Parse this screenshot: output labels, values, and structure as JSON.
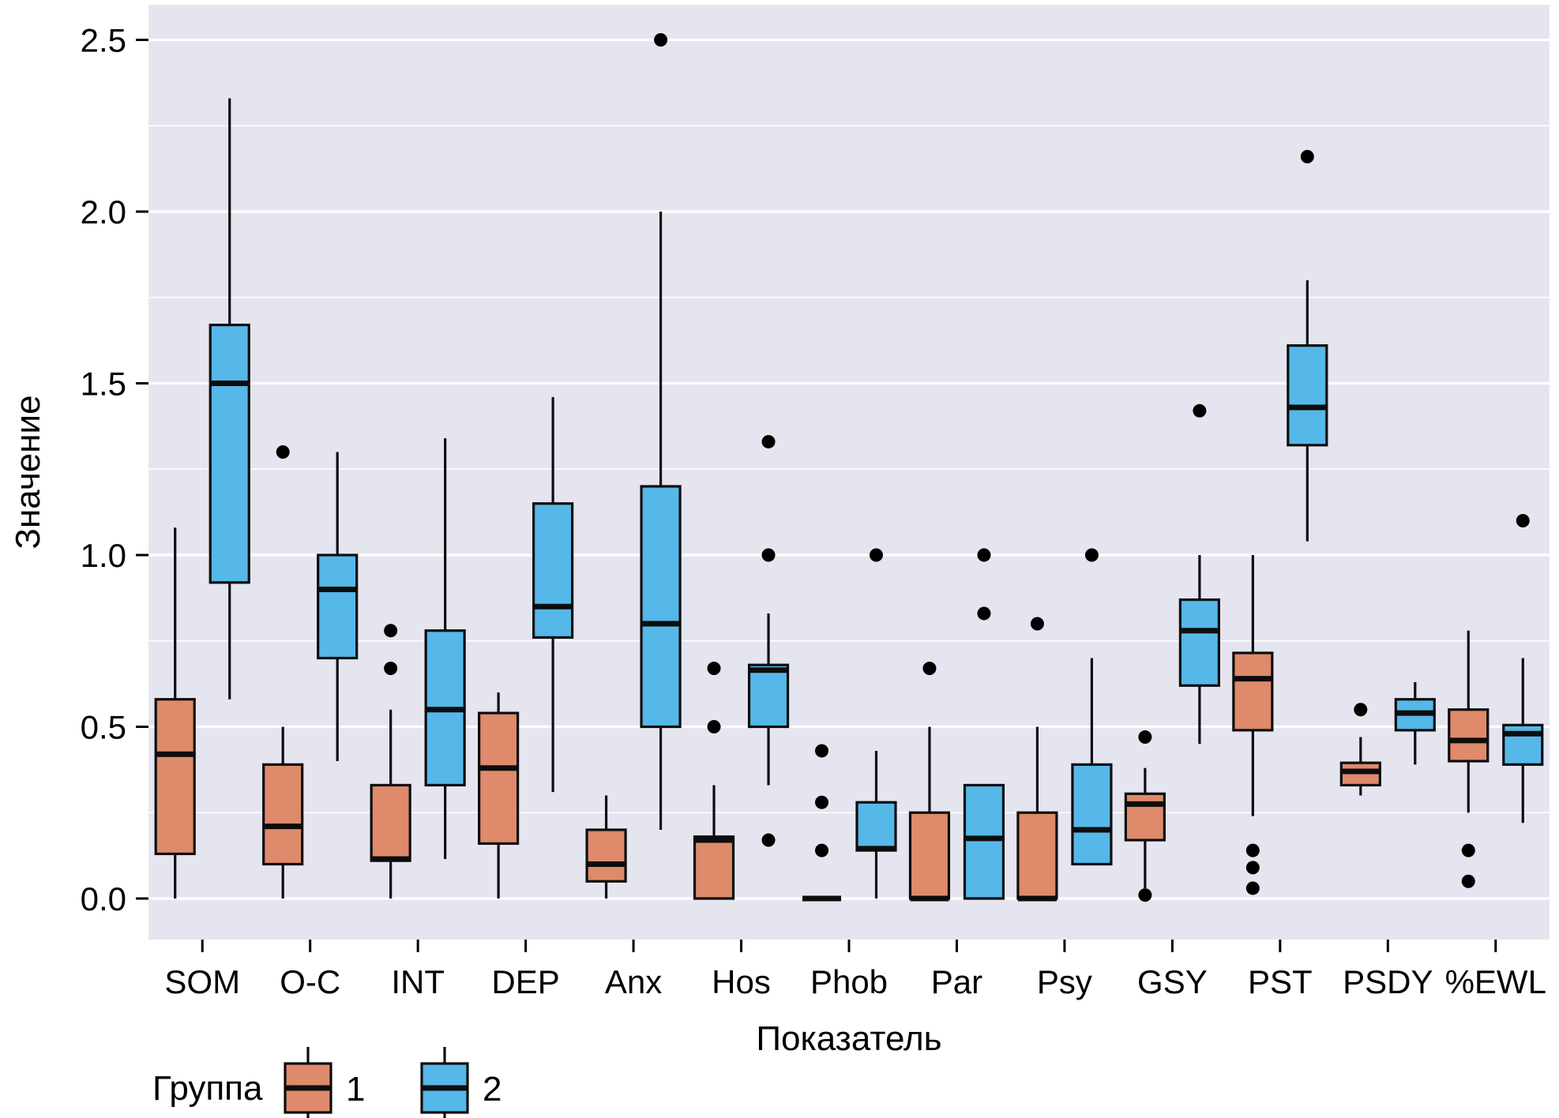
{
  "chart_data": {
    "type": "boxplot",
    "title": "",
    "xlabel": "Показатель",
    "ylabel": "Значение",
    "ylim": [
      -0.12,
      2.6
    ],
    "yticks": [
      0.0,
      0.5,
      1.0,
      1.5,
      2.0,
      2.5
    ],
    "ytick_labels": [
      "0.0",
      "0.5",
      "1.0",
      "1.5",
      "2.0",
      "2.5"
    ],
    "minor_gridlines": [
      0.25,
      0.75,
      1.25,
      1.75,
      2.25
    ],
    "grid": true,
    "panel_color": "#E5E5F0",
    "gridline_color": "#FFFFFF",
    "box_border_color": "#0d0d0d",
    "categories": [
      "SOM",
      "O-C",
      "INT",
      "DEP",
      "Anx",
      "Hos",
      "Phob",
      "Par",
      "Psy",
      "GSY",
      "PST",
      "PSDY",
      "%EWL"
    ],
    "legend": {
      "title": "Группа",
      "position": "bottom",
      "entries": [
        {
          "label": "1",
          "color": "#DE8A6B"
        },
        {
          "label": "2",
          "color": "#55B8E8"
        }
      ]
    },
    "series": [
      {
        "name": "1",
        "color": "#DE8A6B",
        "boxes": [
          {
            "category": "SOM",
            "min": 0.0,
            "q1": 0.13,
            "median": 0.42,
            "q3": 0.58,
            "max": 1.08,
            "outliers": []
          },
          {
            "category": "O-C",
            "min": 0.0,
            "q1": 0.1,
            "median": 0.21,
            "q3": 0.39,
            "max": 0.5,
            "outliers": [
              1.3
            ]
          },
          {
            "category": "INT",
            "min": 0.0,
            "q1": 0.11,
            "median": 0.115,
            "q3": 0.33,
            "max": 0.55,
            "outliers": [
              0.67,
              0.78
            ]
          },
          {
            "category": "DEP",
            "min": 0.0,
            "q1": 0.16,
            "median": 0.38,
            "q3": 0.54,
            "max": 0.6,
            "outliers": []
          },
          {
            "category": "Anx",
            "min": 0.0,
            "q1": 0.05,
            "median": 0.1,
            "q3": 0.2,
            "max": 0.3,
            "outliers": []
          },
          {
            "category": "Hos",
            "min": 0.0,
            "q1": 0.0,
            "median": 0.17,
            "q3": 0.18,
            "max": 0.33,
            "outliers": [
              0.5,
              0.67
            ]
          },
          {
            "category": "Phob",
            "min": 0.0,
            "q1": 0.0,
            "median": 0.0,
            "q3": 0.0,
            "max": 0.0,
            "outliers": [
              0.14,
              0.28,
              0.43
            ]
          },
          {
            "category": "Par",
            "min": 0.0,
            "q1": 0.0,
            "median": 0.0,
            "q3": 0.25,
            "max": 0.5,
            "outliers": [
              0.67
            ]
          },
          {
            "category": "Psy",
            "min": 0.0,
            "q1": 0.0,
            "median": 0.0,
            "q3": 0.25,
            "max": 0.5,
            "outliers": [
              0.8
            ]
          },
          {
            "category": "GSY",
            "min": 0.03,
            "q1": 0.17,
            "median": 0.275,
            "q3": 0.305,
            "max": 0.38,
            "outliers": [
              0.01,
              0.47
            ]
          },
          {
            "category": "PST",
            "min": 0.24,
            "q1": 0.49,
            "median": 0.64,
            "q3": 0.715,
            "max": 1.0,
            "outliers": [
              0.03,
              0.09,
              0.14
            ]
          },
          {
            "category": "PSDY",
            "min": 0.3,
            "q1": 0.33,
            "median": 0.37,
            "q3": 0.395,
            "max": 0.47,
            "outliers": [
              0.55
            ]
          },
          {
            "category": "%EWL",
            "min": 0.25,
            "q1": 0.4,
            "median": 0.46,
            "q3": 0.55,
            "max": 0.78,
            "outliers": [
              0.05,
              0.14
            ]
          }
        ]
      },
      {
        "name": "2",
        "color": "#55B8E8",
        "boxes": [
          {
            "category": "SOM",
            "min": 0.58,
            "q1": 0.92,
            "median": 1.5,
            "q3": 1.67,
            "max": 2.33,
            "outliers": []
          },
          {
            "category": "O-C",
            "min": 0.4,
            "q1": 0.7,
            "median": 0.9,
            "q3": 1.0,
            "max": 1.3,
            "outliers": []
          },
          {
            "category": "INT",
            "min": 0.115,
            "q1": 0.33,
            "median": 0.55,
            "q3": 0.78,
            "max": 1.34,
            "outliers": []
          },
          {
            "category": "DEP",
            "min": 0.31,
            "q1": 0.76,
            "median": 0.85,
            "q3": 1.15,
            "max": 1.46,
            "outliers": []
          },
          {
            "category": "Anx",
            "min": 0.2,
            "q1": 0.5,
            "median": 0.8,
            "q3": 1.2,
            "max": 2.0,
            "outliers": [
              2.5
            ]
          },
          {
            "category": "Hos",
            "min": 0.33,
            "q1": 0.5,
            "median": 0.665,
            "q3": 0.68,
            "max": 0.83,
            "outliers": [
              0.17,
              1.0,
              1.33
            ]
          },
          {
            "category": "Phob",
            "min": 0.0,
            "q1": 0.14,
            "median": 0.145,
            "q3": 0.28,
            "max": 0.43,
            "outliers": [
              1.0
            ]
          },
          {
            "category": "Par",
            "min": 0.0,
            "q1": 0.0,
            "median": 0.175,
            "q3": 0.33,
            "max": 0.33,
            "outliers": [
              0.83,
              1.0
            ]
          },
          {
            "category": "Psy",
            "min": 0.1,
            "q1": 0.1,
            "median": 0.2,
            "q3": 0.39,
            "max": 0.7,
            "outliers": [
              1.0
            ]
          },
          {
            "category": "GSY",
            "min": 0.45,
            "q1": 0.62,
            "median": 0.78,
            "q3": 0.87,
            "max": 1.0,
            "outliers": [
              1.42
            ]
          },
          {
            "category": "PST",
            "min": 1.04,
            "q1": 1.32,
            "median": 1.43,
            "q3": 1.61,
            "max": 1.8,
            "outliers": [
              2.16
            ]
          },
          {
            "category": "PSDY",
            "min": 0.39,
            "q1": 0.49,
            "median": 0.54,
            "q3": 0.58,
            "max": 0.63,
            "outliers": []
          },
          {
            "category": "%EWL",
            "min": 0.22,
            "q1": 0.39,
            "median": 0.48,
            "q3": 0.505,
            "max": 0.7,
            "outliers": [
              1.1
            ]
          }
        ]
      }
    ]
  }
}
